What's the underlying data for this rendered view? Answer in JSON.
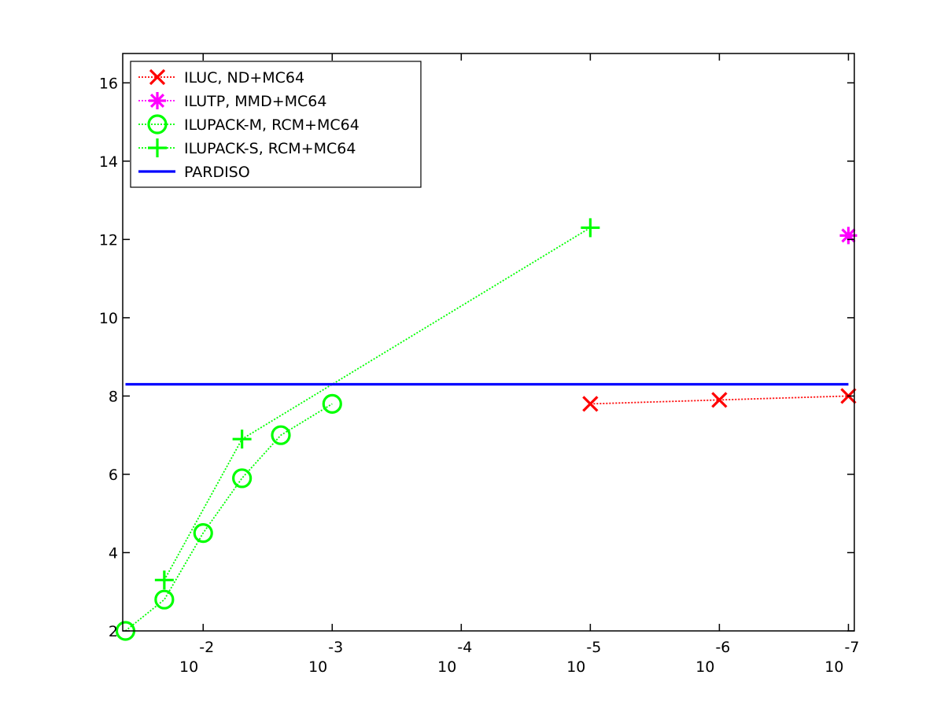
{
  "chart_data": {
    "type": "line",
    "x_scale": "log",
    "x_axis_reversed": true,
    "xlim": [
      0.042,
      9e-08
    ],
    "ylim": [
      2,
      16.75
    ],
    "x_ticks": [
      {
        "value": 0.01,
        "base": "10",
        "exp": "-2"
      },
      {
        "value": 0.001,
        "base": "10",
        "exp": "-3"
      },
      {
        "value": 0.0001,
        "base": "10",
        "exp": "-4"
      },
      {
        "value": 1e-05,
        "base": "10",
        "exp": "-5"
      },
      {
        "value": 1e-06,
        "base": "10",
        "exp": "-6"
      },
      {
        "value": 1e-07,
        "base": "10",
        "exp": "-7"
      }
    ],
    "y_ticks": [
      2,
      4,
      6,
      8,
      10,
      12,
      14,
      16
    ],
    "grid": false,
    "legend_position": "top-left",
    "xlabel": "",
    "ylabel": "",
    "title": "",
    "series": [
      {
        "name": "ILUC,  ND+MC64",
        "color": "#ff0000",
        "marker": "x",
        "line": "dotted",
        "points": [
          [
            1e-05,
            7.8
          ],
          [
            1e-06,
            7.9
          ],
          [
            1e-07,
            8.0
          ]
        ]
      },
      {
        "name": "ILUTP, MMD+MC64",
        "color": "#ff00ff",
        "marker": "asterisk",
        "line": "dotted",
        "points": [
          [
            1e-07,
            12.1
          ]
        ]
      },
      {
        "name": "ILUPACK-M, RCM+MC64",
        "color": "#00ff00",
        "marker": "circle",
        "line": "dotted",
        "points": [
          [
            0.04,
            2.0
          ],
          [
            0.02,
            2.8
          ],
          [
            0.01,
            4.5
          ],
          [
            0.005,
            5.9
          ],
          [
            0.0025,
            7.0
          ],
          [
            0.001,
            7.8
          ]
        ]
      },
      {
        "name": "ILUPACK-S, RCM+MC64",
        "color": "#00ff00",
        "marker": "plus",
        "line": "dotted",
        "points": [
          [
            0.02,
            3.3
          ],
          [
            0.005,
            6.9
          ],
          [
            1e-05,
            12.3
          ]
        ]
      },
      {
        "name": "PARDISO",
        "color": "#0000ff",
        "marker": "none",
        "line": "solid",
        "points": [
          [
            0.04,
            8.3
          ],
          [
            1e-07,
            8.3
          ]
        ]
      }
    ]
  }
}
